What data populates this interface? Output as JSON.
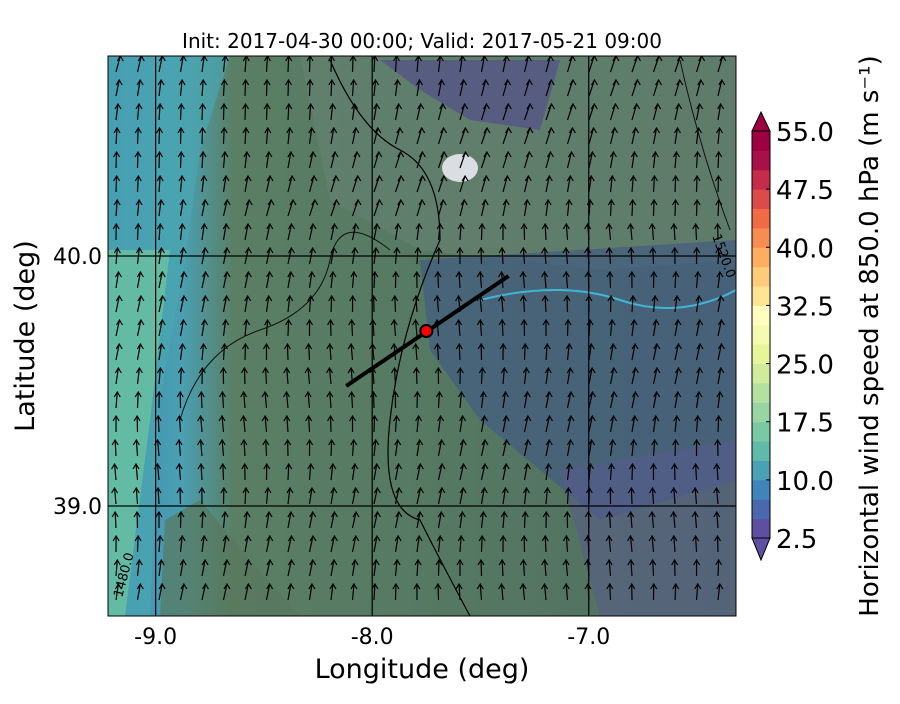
{
  "chart_data": {
    "type": "map",
    "title": "Init: 2017-04-30 00:00; Valid: 2017-05-21 09:00",
    "xlabel": "Longitude (deg)",
    "ylabel": "Latitude (deg)",
    "xlim": [
      -9.22,
      -6.32
    ],
    "ylim": [
      38.56,
      40.8
    ],
    "xticks": [
      {
        "value": -9,
        "label": "-9.0"
      },
      {
        "value": -8,
        "label": "-8.0"
      },
      {
        "value": -7,
        "label": "-7.0"
      }
    ],
    "yticks": [
      {
        "value": 39,
        "label": "39.0"
      },
      {
        "value": 40,
        "label": "40.0"
      }
    ],
    "grid": true,
    "point": {
      "x": -7.75,
      "y": 39.7,
      "color": "#ff0000"
    },
    "section": {
      "x": [
        -8.12,
        -7.37
      ],
      "y": [
        39.48,
        39.92
      ],
      "color": "#000000"
    },
    "contour_labels": [
      "1520.0",
      "1480.0"
    ],
    "colorbar": {
      "label": "Horizontal wind speed at 850.0 hPa (m s⁻¹)",
      "lim": [
        2.5,
        55
      ],
      "ticks": [
        2.5,
        {
          "value": 10,
          "label": "10.0"
        },
        17.5,
        {
          "value": 25,
          "label": "25.0"
        },
        32.5,
        {
          "value": 40,
          "label": "40.0"
        },
        47.5,
        {
          "value": 55,
          "label": "55.0"
        }
      ],
      "colors": [
        "#5e4fa2",
        "#4a68ad",
        "#3f84bb",
        "#4aa0b5",
        "#5fbaa8",
        "#79c9a4",
        "#98d5a4",
        "#b4e0a2",
        "#cfeb9c",
        "#e6f598",
        "#f4fab0",
        "#fffebe",
        "#fee593",
        "#fecb7a",
        "#fdae61",
        "#f88d52",
        "#f06a44",
        "#dd4a4c",
        "#c52b4b",
        "#a8104a",
        "#9e0142"
      ]
    }
  }
}
